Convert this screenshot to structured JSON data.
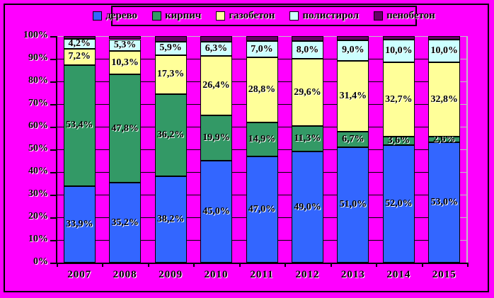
{
  "chart_data": {
    "type": "bar",
    "subtype": "stacked-100-percent",
    "title": "",
    "xlabel": "",
    "ylabel": "",
    "categories": [
      "2007",
      "2008",
      "2009",
      "2010",
      "2011",
      "2012",
      "2013",
      "2014",
      "2015"
    ],
    "series": [
      {
        "name": "дерево",
        "color": "#3366FF",
        "labeled": true,
        "values": [
          33.9,
          35.2,
          38.2,
          45.0,
          47.0,
          49.0,
          51.0,
          52.0,
          53.0
        ]
      },
      {
        "name": "кирпич",
        "color": "#339966",
        "labeled": true,
        "values": [
          53.4,
          47.8,
          36.2,
          19.9,
          14.9,
          11.3,
          6.7,
          3.6,
          2.6
        ]
      },
      {
        "name": "газобетон",
        "color": "#FFFF99",
        "labeled": true,
        "values": [
          7.2,
          10.3,
          17.3,
          26.4,
          28.8,
          29.6,
          31.4,
          32.7,
          32.8
        ]
      },
      {
        "name": "полистирол",
        "color": "#CCFFFF",
        "labeled": true,
        "values": [
          4.2,
          5.3,
          5.9,
          6.3,
          7.0,
          8.0,
          9.0,
          10.0,
          10.0
        ]
      },
      {
        "name": "пенобетон",
        "color": "#660066",
        "labeled": false,
        "values": [
          1.3,
          1.4,
          2.4,
          2.4,
          2.3,
          2.1,
          1.9,
          1.7,
          1.6
        ]
      }
    ],
    "y_axis": {
      "min": 0,
      "max": 100,
      "step": 10,
      "tick_labels": [
        "0%",
        "10%",
        "20%",
        "30%",
        "40%",
        "50%",
        "60%",
        "70%",
        "80%",
        "90%",
        "100%"
      ]
    },
    "data_label_format": "comma-decimal-percent",
    "legend_position": "top",
    "gridlines": true,
    "colors": {
      "background": "#FF00FF",
      "gridline": "#000000",
      "gridline_right_stub": "#C0C0C0",
      "top_gridline": "#C0C0C0",
      "plot_right_border": "#C0C0C0",
      "axis": "#000000",
      "text": "#000000",
      "text_shadow": "#FFFFFF",
      "border": "#000000"
    }
  }
}
